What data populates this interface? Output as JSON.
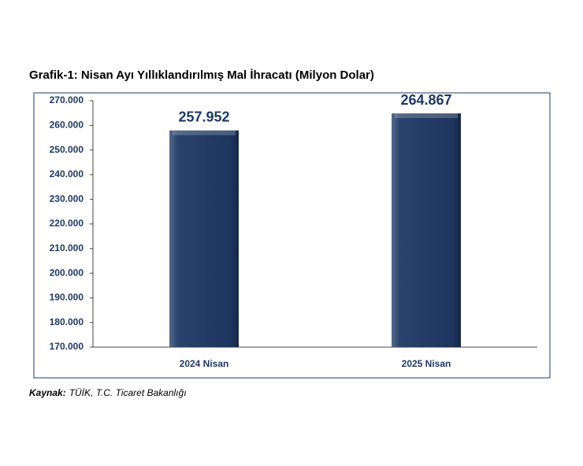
{
  "chart_data": {
    "type": "bar",
    "title": "Grafik-1: Nisan Ayı Yıllıklandırılmış Mal İhracatı (Milyon Dolar)",
    "categories": [
      "2024 Nisan",
      "2025 Nisan"
    ],
    "values": [
      257952,
      264867
    ],
    "value_labels": [
      "257.952",
      "264.867"
    ],
    "color": "#1f3864",
    "ylim": [
      170000,
      270000
    ],
    "yticks": [
      {
        "value": 170000,
        "label": "170.000"
      },
      {
        "value": 180000,
        "label": "180.000"
      },
      {
        "value": 190000,
        "label": "190.000"
      },
      {
        "value": 200000,
        "label": "200.000"
      },
      {
        "value": 210000,
        "label": "210.000"
      },
      {
        "value": 220000,
        "label": "220.000"
      },
      {
        "value": 230000,
        "label": "230.000"
      },
      {
        "value": 240000,
        "label": "240.000"
      },
      {
        "value": 250000,
        "label": "250.000"
      },
      {
        "value": 260000,
        "label": "260.000"
      },
      {
        "value": 270000,
        "label": "270.000"
      }
    ],
    "grid": false,
    "source_label": "Kaynak:",
    "source": "TÜİK, T.C. Ticaret Bakanlığı"
  }
}
